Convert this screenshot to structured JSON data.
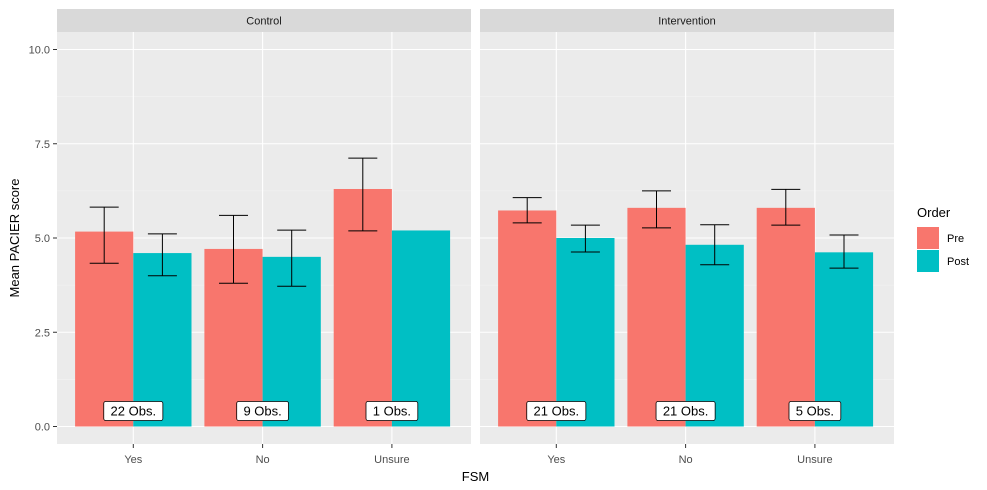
{
  "chart_data": {
    "type": "bar",
    "facets": [
      {
        "name": "Control",
        "categories": [
          "Yes",
          "No",
          "Unsure"
        ],
        "series": [
          {
            "name": "Pre",
            "values": [
              5.17,
              4.71,
              6.3
            ],
            "err_low": [
              4.33,
              3.8,
              5.19
            ],
            "err_high": [
              5.82,
              5.6,
              7.12
            ]
          },
          {
            "name": "Post",
            "values": [
              4.6,
              4.5,
              5.2
            ],
            "err_low": [
              4.0,
              3.72,
              null
            ],
            "err_high": [
              5.11,
              5.21,
              null
            ]
          }
        ],
        "obs_labels": [
          "22 Obs.",
          "9 Obs.",
          "1 Obs."
        ]
      },
      {
        "name": "Intervention",
        "categories": [
          "Yes",
          "No",
          "Unsure"
        ],
        "series": [
          {
            "name": "Pre",
            "values": [
              5.73,
              5.8,
              5.8
            ],
            "err_low": [
              5.4,
              5.27,
              5.34
            ],
            "err_high": [
              6.07,
              6.25,
              6.29
            ]
          },
          {
            "name": "Post",
            "values": [
              5.0,
              4.82,
              4.62
            ],
            "err_low": [
              4.63,
              4.29,
              4.2
            ],
            "err_high": [
              5.34,
              5.35,
              5.08
            ]
          }
        ],
        "obs_labels": [
          "21 Obs.",
          "21 Obs.",
          "5 Obs."
        ]
      }
    ],
    "xlabel": "FSM",
    "ylabel": "Mean PACIER score",
    "ylim": [
      0,
      10
    ],
    "yticks": [
      "0.0",
      "2.5",
      "5.0",
      "7.5",
      "10.0"
    ],
    "ytick_values": [
      0,
      2.5,
      5,
      7.5,
      10
    ],
    "legend": {
      "title": "Order",
      "position": "right",
      "entries": [
        "Pre",
        "Post"
      ]
    },
    "colors": {
      "Pre": "#F8766D",
      "Post": "#00BFC4"
    },
    "grid": true
  }
}
